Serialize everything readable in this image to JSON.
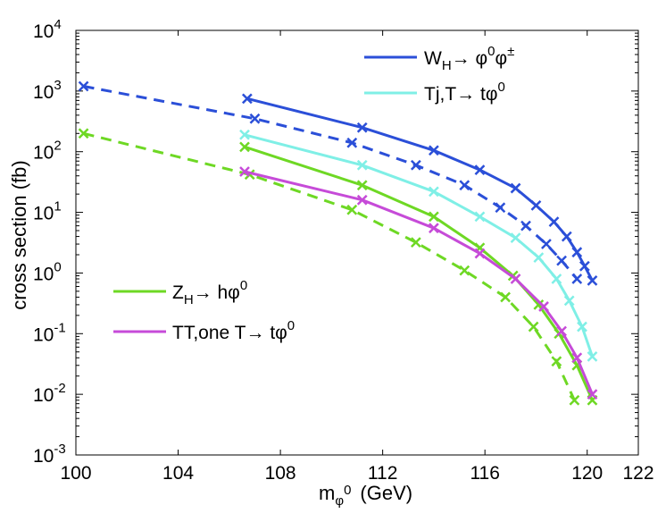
{
  "chart_data": {
    "type": "line",
    "title": "",
    "xlabel_main": "m",
    "xlabel_sub": "φ",
    "xlabel_sub_sup": "0",
    "xlabel_unit": "(GeV)",
    "ylabel": "cross section   (fb)",
    "xlim": [
      100,
      122
    ],
    "ylim_log10": [
      -3,
      4
    ],
    "y_scale": "log",
    "x_ticks": [
      100,
      104,
      108,
      112,
      116,
      120,
      122
    ],
    "x_tick_labels": [
      "100",
      "104",
      "108",
      "112",
      "116",
      "120",
      "122"
    ],
    "y_ticks_exp": [
      -3,
      -2,
      -1,
      0,
      1,
      2,
      3,
      4
    ],
    "y_tick_base": "10",
    "y_tick_exps": [
      "-3",
      "-2",
      "-1",
      "0",
      "1",
      "2",
      "3",
      "4"
    ],
    "series": [
      {
        "name": "W_H solid",
        "color": "#2b4fd8",
        "style": "solid",
        "x": [
          106.7,
          111.2,
          114.0,
          115.8,
          117.2,
          118.0,
          118.7,
          119.2,
          119.6,
          119.9,
          120.2
        ],
        "y": [
          750,
          250,
          105,
          50,
          25,
          13,
          7,
          4,
          2.2,
          1.3,
          0.75
        ]
      },
      {
        "name": "W_H dashed",
        "color": "#2b4fd8",
        "style": "dashed",
        "x": [
          100.3,
          107.0,
          110.8,
          113.3,
          115.2,
          116.6,
          117.6,
          118.4,
          119.0,
          119.6
        ],
        "y": [
          1200,
          350,
          140,
          60,
          28,
          12,
          6,
          3,
          1.6,
          0.8
        ]
      },
      {
        "name": "Tj solid",
        "color": "#7fefe6",
        "style": "solid",
        "x": [
          106.6,
          111.2,
          114.0,
          115.8,
          117.2,
          118.1,
          118.8,
          119.3,
          119.8,
          120.2
        ],
        "y": [
          190,
          60,
          22,
          8.5,
          3.8,
          1.8,
          0.8,
          0.35,
          0.13,
          0.042
        ]
      },
      {
        "name": "Z_H solid",
        "color": "#6ed824",
        "style": "solid",
        "x": [
          106.6,
          111.2,
          114.0,
          115.8,
          117.1,
          118.1,
          118.9,
          119.6,
          120.2
        ],
        "y": [
          120,
          28,
          8.5,
          2.6,
          0.9,
          0.3,
          0.1,
          0.03,
          0.008
        ]
      },
      {
        "name": "Z_H dashed",
        "color": "#6ed824",
        "style": "dashed",
        "x": [
          100.3,
          106.8,
          110.8,
          113.3,
          115.2,
          116.8,
          117.9,
          118.8,
          119.5
        ],
        "y": [
          200,
          42,
          11,
          3.2,
          1.1,
          0.4,
          0.13,
          0.035,
          0.008
        ]
      },
      {
        "name": "TT solid",
        "color": "#c64bd8",
        "style": "solid",
        "x": [
          106.6,
          111.2,
          114.0,
          115.8,
          117.2,
          118.3,
          119.0,
          119.6,
          120.2
        ],
        "y": [
          47,
          16,
          5.5,
          2.1,
          0.8,
          0.28,
          0.11,
          0.04,
          0.01
        ]
      }
    ],
    "legend": [
      {
        "label_main": "W",
        "label_sub": "H",
        "label_rest": "→ φ",
        "label_sup1": "0",
        "label_mid": "φ",
        "label_sup2": "±",
        "color": "#2b4fd8"
      },
      {
        "label_main": "Tj,T→ tφ",
        "label_sup1": "0",
        "color": "#7fefe6"
      },
      {
        "label_main": "Z",
        "label_sub": "H",
        "label_rest": "→ hφ",
        "label_sup1": "0",
        "color": "#6ed824"
      },
      {
        "label_main": "TT,one T→ tφ",
        "label_sup1": "0",
        "color": "#c64bd8"
      }
    ]
  }
}
